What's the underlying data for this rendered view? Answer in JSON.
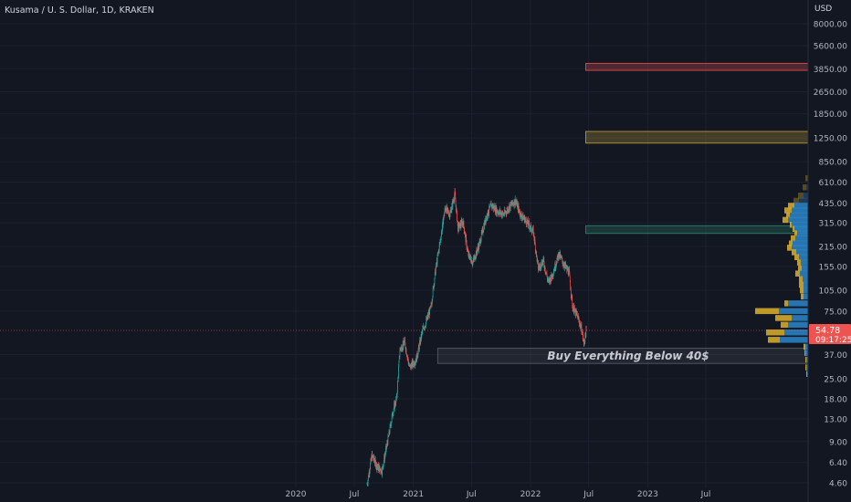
{
  "header": {
    "symbol_title": "Kusama / U. S. Dollar, 1D, KRAKEN",
    "currency": "USD"
  },
  "annotation": {
    "zone_label": "Buy Everything Below 40$"
  },
  "price_badge": {
    "price": "54.78",
    "countdown": "09:17:25"
  },
  "colors": {
    "background": "#131722",
    "candle_up": "#26a69a",
    "candle_down": "#ef5350",
    "vp_up": "#2a7fc0",
    "vp_down": "#d4a72c",
    "zone_red": "#ef5350",
    "zone_yellow": "#c6a43a",
    "zone_green": "#2e8b6e",
    "zone_gray": "#5d606b",
    "price_line": "#ef5350"
  },
  "chart_data": {
    "type": "candlestick",
    "title": "Kusama / U. S. Dollar, 1D, KRAKEN",
    "y_scale": "log",
    "y_unit": "USD",
    "y_ticks": [
      4.6,
      6.4,
      9.0,
      13.0,
      18.0,
      25.0,
      37.0,
      54.78,
      75.0,
      105.0,
      155.0,
      215.0,
      315.0,
      435.0,
      610.0,
      850.0,
      1250.0,
      1850.0,
      2650.0,
      3850.0,
      5600.0,
      8000.0
    ],
    "y_tick_labels": [
      "4.60",
      "6.40",
      "9.00",
      "13.00",
      "18.00",
      "25.00",
      "37.00",
      "54.78",
      "75.00",
      "105.00",
      "155.00",
      "215.00",
      "315.00",
      "435.00",
      "610.00",
      "850.00",
      "1250.00",
      "1850.00",
      "2650.00",
      "3850.00",
      "5600.00",
      "8000.00"
    ],
    "x_ticks": [
      "2020",
      "Jul",
      "2021",
      "Jul",
      "2022",
      "Jul",
      "2023",
      "Jul"
    ],
    "x_tick_dates": [
      "2020-01-01",
      "2020-07-01",
      "2021-01-01",
      "2021-07-01",
      "2022-01-01",
      "2022-07-01",
      "2023-01-01",
      "2023-07-01"
    ],
    "last_price": 54.78,
    "price_path": [
      [
        "2020-08-10",
        4.5
      ],
      [
        "2020-08-25",
        7.2
      ],
      [
        "2020-09-10",
        6.0
      ],
      [
        "2020-09-25",
        5.6
      ],
      [
        "2020-10-15",
        9.5
      ],
      [
        "2020-10-30",
        15.0
      ],
      [
        "2020-11-10",
        18.0
      ],
      [
        "2020-11-20",
        40.0
      ],
      [
        "2020-12-05",
        45.0
      ],
      [
        "2020-12-20",
        30.0
      ],
      [
        "2021-01-10",
        34.0
      ],
      [
        "2021-01-30",
        55.0
      ],
      [
        "2021-02-10",
        63.0
      ],
      [
        "2021-02-25",
        80.0
      ],
      [
        "2021-03-10",
        140.0
      ],
      [
        "2021-03-25",
        230.0
      ],
      [
        "2021-04-10",
        400.0
      ],
      [
        "2021-04-25",
        360.0
      ],
      [
        "2021-05-10",
        500.0
      ],
      [
        "2021-05-20",
        290.0
      ],
      [
        "2021-06-05",
        320.0
      ],
      [
        "2021-06-20",
        190.0
      ],
      [
        "2021-07-05",
        165.0
      ],
      [
        "2021-07-25",
        220.0
      ],
      [
        "2021-08-15",
        340.0
      ],
      [
        "2021-09-01",
        420.0
      ],
      [
        "2021-09-20",
        380.0
      ],
      [
        "2021-10-10",
        360.0
      ],
      [
        "2021-11-01",
        420.0
      ],
      [
        "2021-11-15",
        450.0
      ],
      [
        "2021-12-01",
        360.0
      ],
      [
        "2021-12-20",
        320.0
      ],
      [
        "2022-01-10",
        270.0
      ],
      [
        "2022-01-25",
        150.0
      ],
      [
        "2022-02-10",
        170.0
      ],
      [
        "2022-02-25",
        120.0
      ],
      [
        "2022-03-10",
        135.0
      ],
      [
        "2022-03-30",
        190.0
      ],
      [
        "2022-04-15",
        160.0
      ],
      [
        "2022-05-01",
        140.0
      ],
      [
        "2022-05-12",
        80.0
      ],
      [
        "2022-05-28",
        68.0
      ],
      [
        "2022-06-10",
        55.0
      ],
      [
        "2022-06-16",
        44.0
      ],
      [
        "2022-06-24",
        54.78
      ]
    ],
    "horizontal_zones": [
      {
        "from_date": "2022-06-22",
        "low": 3750,
        "high": 4200,
        "color": "red"
      },
      {
        "from_date": "2022-06-22",
        "low": 1150,
        "high": 1390,
        "color": "yellow"
      },
      {
        "from_date": "2022-06-22",
        "low": 265,
        "high": 300,
        "color": "green"
      },
      {
        "from_date": "2021-03-18",
        "low": 32,
        "high": 41,
        "color": "gray",
        "label": "Buy Everything Below 40$"
      }
    ],
    "volume_profile_rows": [
      [
        650,
        0.03,
        0.0
      ],
      [
        560,
        0.06,
        0.02
      ],
      [
        490,
        0.11,
        0.05
      ],
      [
        450,
        0.16,
        0.1
      ],
      [
        415,
        0.22,
        0.15
      ],
      [
        385,
        0.26,
        0.18
      ],
      [
        355,
        0.24,
        0.2
      ],
      [
        330,
        0.28,
        0.22
      ],
      [
        305,
        0.2,
        0.18
      ],
      [
        285,
        0.17,
        0.15
      ],
      [
        265,
        0.15,
        0.12
      ],
      [
        245,
        0.19,
        0.14
      ],
      [
        225,
        0.21,
        0.17
      ],
      [
        210,
        0.23,
        0.18
      ],
      [
        195,
        0.18,
        0.13
      ],
      [
        180,
        0.15,
        0.1
      ],
      [
        165,
        0.12,
        0.08
      ],
      [
        150,
        0.11,
        0.07
      ],
      [
        138,
        0.14,
        0.09
      ],
      [
        126,
        0.1,
        0.06
      ],
      [
        115,
        0.1,
        0.05
      ],
      [
        105,
        0.09,
        0.05
      ],
      [
        95,
        0.08,
        0.05
      ],
      [
        85,
        0.26,
        0.22
      ],
      [
        75,
        0.58,
        0.32
      ],
      [
        67,
        0.36,
        0.18
      ],
      [
        60,
        0.3,
        0.22
      ],
      [
        53,
        0.46,
        0.26
      ],
      [
        47,
        0.44,
        0.31
      ],
      [
        42,
        0.05,
        0.03
      ],
      [
        38,
        0.04,
        0.03
      ],
      [
        34,
        0.03,
        0.02
      ],
      [
        30,
        0.03,
        0.02
      ],
      [
        27,
        0.02,
        0.01
      ]
    ]
  }
}
